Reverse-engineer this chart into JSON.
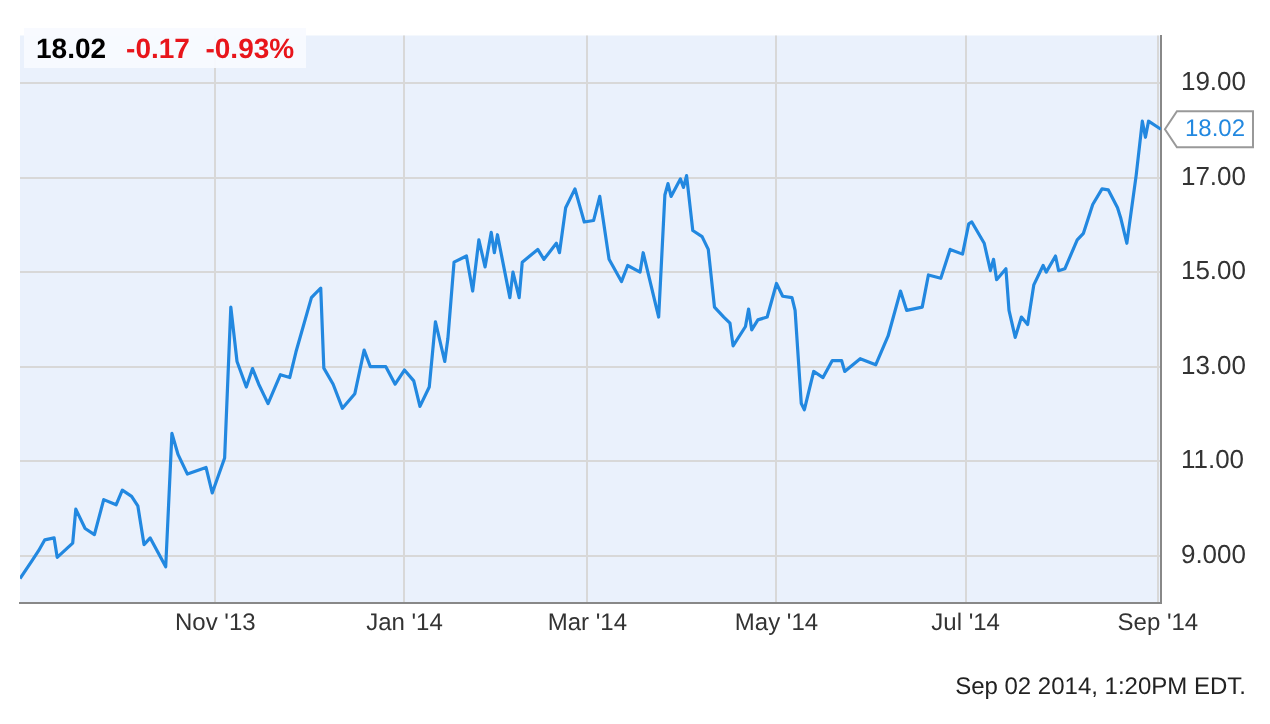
{
  "chart_data": {
    "type": "line",
    "title": "18.02",
    "subtitle": "-0.17  -0.93%",
    "x": [
      "2013-08-30",
      "2013-09-03",
      "2013-09-05",
      "2013-09-07",
      "2013-09-10",
      "2013-09-11",
      "2013-09-16",
      "2013-09-17",
      "2013-09-20",
      "2013-09-23",
      "2013-09-26",
      "2013-09-30",
      "2013-10-02",
      "2013-10-05",
      "2013-10-07",
      "2013-10-09",
      "2013-10-11",
      "2013-10-16",
      "2013-10-18",
      "2013-10-20",
      "2013-10-23",
      "2013-10-29",
      "2013-10-31",
      "2013-11-04",
      "2013-11-06",
      "2013-11-08",
      "2013-11-11",
      "2013-11-13",
      "2013-11-15",
      "2013-11-18",
      "2013-11-22",
      "2013-11-25",
      "2013-11-27",
      "2013-12-02",
      "2013-12-03",
      "2013-12-05",
      "2013-12-06",
      "2013-12-09",
      "2013-12-12",
      "2013-12-16",
      "2013-12-19",
      "2013-12-21",
      "2013-12-26",
      "2013-12-29",
      "2014-01-01",
      "2014-01-04",
      "2014-01-06",
      "2014-01-09",
      "2014-01-11",
      "2014-01-14",
      "2014-01-15",
      "2014-01-17",
      "2014-01-21",
      "2014-01-23",
      "2014-01-25",
      "2014-01-27",
      "2014-01-29",
      "2014-01-30",
      "2014-01-31",
      "2014-02-04",
      "2014-02-05",
      "2014-02-07",
      "2014-02-08",
      "2014-02-13",
      "2014-02-15",
      "2014-02-19",
      "2014-02-20",
      "2014-02-22",
      "2014-02-25",
      "2014-02-28",
      "2014-03-03",
      "2014-03-05",
      "2014-03-08",
      "2014-03-12",
      "2014-03-14",
      "2014-03-18",
      "2014-03-19",
      "2014-03-24",
      "2014-03-26",
      "2014-03-27",
      "2014-03-28",
      "2014-03-31",
      "2014-04-01",
      "2014-04-02",
      "2014-04-04",
      "2014-04-07",
      "2014-04-09",
      "2014-04-11",
      "2014-04-14",
      "2014-04-16",
      "2014-04-17",
      "2014-04-21",
      "2014-04-22",
      "2014-04-23",
      "2014-04-25",
      "2014-04-28",
      "2014-05-01",
      "2014-05-03",
      "2014-05-06",
      "2014-05-07",
      "2014-05-09",
      "2014-05-10",
      "2014-05-13",
      "2014-05-16",
      "2014-05-19",
      "2014-05-22",
      "2014-05-23",
      "2014-05-28",
      "2014-06-02",
      "2014-06-06",
      "2014-06-10",
      "2014-06-12",
      "2014-06-17",
      "2014-06-19",
      "2014-06-23",
      "2014-06-26",
      "2014-06-30",
      "2014-07-02",
      "2014-07-03",
      "2014-07-07",
      "2014-07-09",
      "2014-07-10",
      "2014-07-11",
      "2014-07-14",
      "2014-07-15",
      "2014-07-17",
      "2014-07-19",
      "2014-07-21",
      "2014-07-23",
      "2014-07-26",
      "2014-07-27",
      "2014-07-30",
      "2014-07-31",
      "2014-08-02",
      "2014-08-06",
      "2014-08-08",
      "2014-08-11",
      "2014-08-14",
      "2014-08-16",
      "2014-08-19",
      "2014-08-20",
      "2014-08-22",
      "2014-08-25",
      "2014-08-27",
      "2014-08-28",
      "2014-08-29",
      "2014-09-02"
    ],
    "series": [
      {
        "color": "#2288e0",
        "values": [
          8.52,
          8.91,
          9.11,
          9.34,
          9.38,
          8.97,
          9.27,
          9.99,
          9.58,
          9.45,
          10.19,
          10.08,
          10.39,
          10.26,
          10.06,
          9.24,
          9.38,
          8.77,
          11.59,
          11.14,
          10.73,
          10.87,
          10.33,
          11.07,
          14.26,
          13.11,
          12.57,
          12.96,
          12.63,
          12.22,
          12.83,
          12.77,
          13.31,
          14.46,
          14.53,
          14.66,
          12.97,
          12.63,
          12.12,
          12.43,
          13.35,
          13.0,
          13.0,
          12.63,
          12.93,
          12.7,
          12.16,
          12.57,
          13.95,
          13.11,
          13.59,
          15.21,
          15.34,
          14.6,
          15.68,
          15.11,
          15.84,
          15.41,
          15.79,
          14.46,
          15.0,
          14.46,
          15.21,
          15.48,
          15.27,
          15.61,
          15.41,
          16.36,
          16.76,
          16.06,
          16.09,
          16.6,
          15.27,
          14.8,
          15.14,
          15.0,
          15.41,
          14.05,
          16.63,
          16.87,
          16.6,
          16.97,
          16.79,
          17.04,
          15.88,
          15.75,
          15.48,
          14.26,
          14.05,
          13.92,
          13.44,
          13.85,
          14.22,
          13.78,
          13.99,
          14.05,
          14.76,
          14.49,
          14.46,
          14.19,
          12.22,
          12.09,
          12.9,
          12.77,
          13.13,
          13.13,
          12.9,
          13.17,
          13.04,
          13.65,
          14.6,
          14.19,
          14.26,
          14.94,
          14.87,
          15.48,
          15.38,
          16.02,
          16.06,
          15.61,
          15.03,
          15.27,
          14.84,
          15.07,
          14.19,
          13.62,
          14.05,
          13.89,
          14.73,
          15.14,
          15.0,
          15.34,
          15.03,
          15.07,
          15.68,
          15.82,
          16.43,
          16.76,
          16.74,
          16.36,
          16.15,
          15.61,
          17.04,
          18.19,
          17.85,
          18.19,
          18.02
        ]
      }
    ],
    "xlim": [
      "2013-08-30",
      "2014-09-02"
    ],
    "xticks": [
      {
        "value": "2013-11-01",
        "label": "Nov '13"
      },
      {
        "value": "2014-01-01",
        "label": "Jan '14"
      },
      {
        "value": "2014-03-01",
        "label": "Mar '14"
      },
      {
        "value": "2014-05-01",
        "label": "May '14"
      },
      {
        "value": "2014-07-01",
        "label": "Jul '14"
      },
      {
        "value": "2014-09-01",
        "label": "Sep '14"
      }
    ],
    "ylim": [
      8,
      20
    ],
    "yticks": [
      {
        "value": 9,
        "label": "9.000"
      },
      {
        "value": 11,
        "label": "11.00"
      },
      {
        "value": 13,
        "label": "13.00"
      },
      {
        "value": 15,
        "label": "15.00"
      },
      {
        "value": 17,
        "label": "17.00"
      },
      {
        "value": 19,
        "label": "19.00"
      }
    ],
    "grid": true,
    "legend": false,
    "marker": "none",
    "line_style": "solid",
    "annotations": [
      {
        "text": "18.02",
        "x": "2014-09-02",
        "y": 18.02
      },
      "Sep 02 2014, 1:20PM EDT."
    ]
  }
}
